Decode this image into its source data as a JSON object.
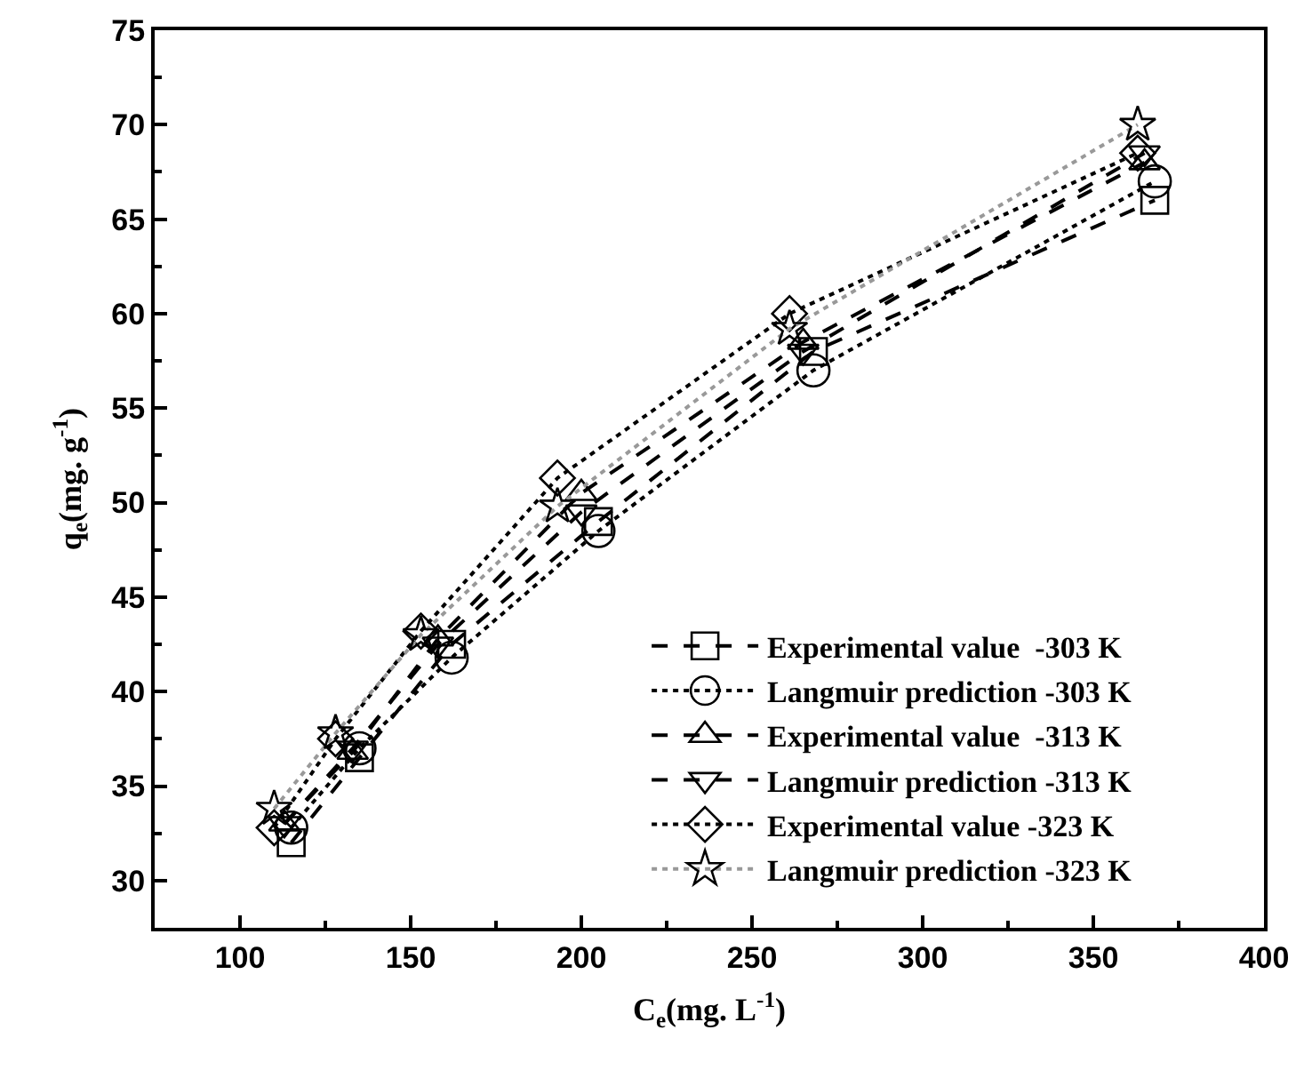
{
  "chart_data": {
    "type": "line",
    "xlabel": "C$_{e}$(mg. L$^{-1}$)",
    "ylabel": "q$_{e}$(mg. g$^{-1}$)",
    "xlim": [
      75,
      400
    ],
    "xticks": [
      100,
      150,
      200,
      250,
      300,
      350,
      400
    ],
    "ylim": [
      27.5,
      75
    ],
    "yticks": [
      30,
      35,
      40,
      45,
      50,
      55,
      60,
      65,
      70,
      75
    ],
    "grid": false,
    "legend": "bottom right",
    "series": [
      {
        "name": "Experimental value  -303 K",
        "color": "#000000",
        "marker": "square",
        "line_style": "dashed",
        "x": [
          115,
          135,
          162,
          205,
          268,
          368
        ],
        "values": [
          32,
          36.5,
          42.5,
          49,
          58,
          66
        ]
      },
      {
        "name": "Langmuir prediction -303 K",
        "color": "#000000",
        "marker": "circle",
        "line_style": "dotted",
        "x": [
          115,
          135,
          162,
          205,
          268,
          368
        ],
        "values": [
          32.8,
          37,
          41.8,
          48.5,
          57,
          67
        ]
      },
      {
        "name": "Experimental value  -313 K",
        "color": "#000000",
        "marker": "triangle",
        "line_style": "dashed",
        "x": [
          113,
          133,
          158,
          200,
          265,
          365
        ],
        "values": [
          33,
          36.8,
          42.8,
          50.5,
          58.5,
          68
        ]
      },
      {
        "name": "Langmuir prediction -313 K",
        "color": "#000000",
        "marker": "triangle-down",
        "line_style": "dashed",
        "x": [
          113,
          133,
          158,
          200,
          265,
          365
        ],
        "values": [
          33,
          37,
          42.5,
          49.5,
          58,
          68.5
        ]
      },
      {
        "name": "Experimental value -323 K",
        "color": "#000000",
        "marker": "diamond",
        "line_style": "dotted",
        "x": [
          110,
          128,
          153,
          193,
          261,
          363
        ],
        "values": [
          32.8,
          37.5,
          43.2,
          51.3,
          60,
          68.5
        ]
      },
      {
        "name": "Langmuir prediction -323 K",
        "color": "#999999",
        "marker": "star",
        "line_style": "dotted",
        "x": [
          110,
          128,
          153,
          193,
          261,
          363
        ],
        "values": [
          33.8,
          37.8,
          43,
          49.8,
          59.2,
          70
        ]
      }
    ]
  }
}
